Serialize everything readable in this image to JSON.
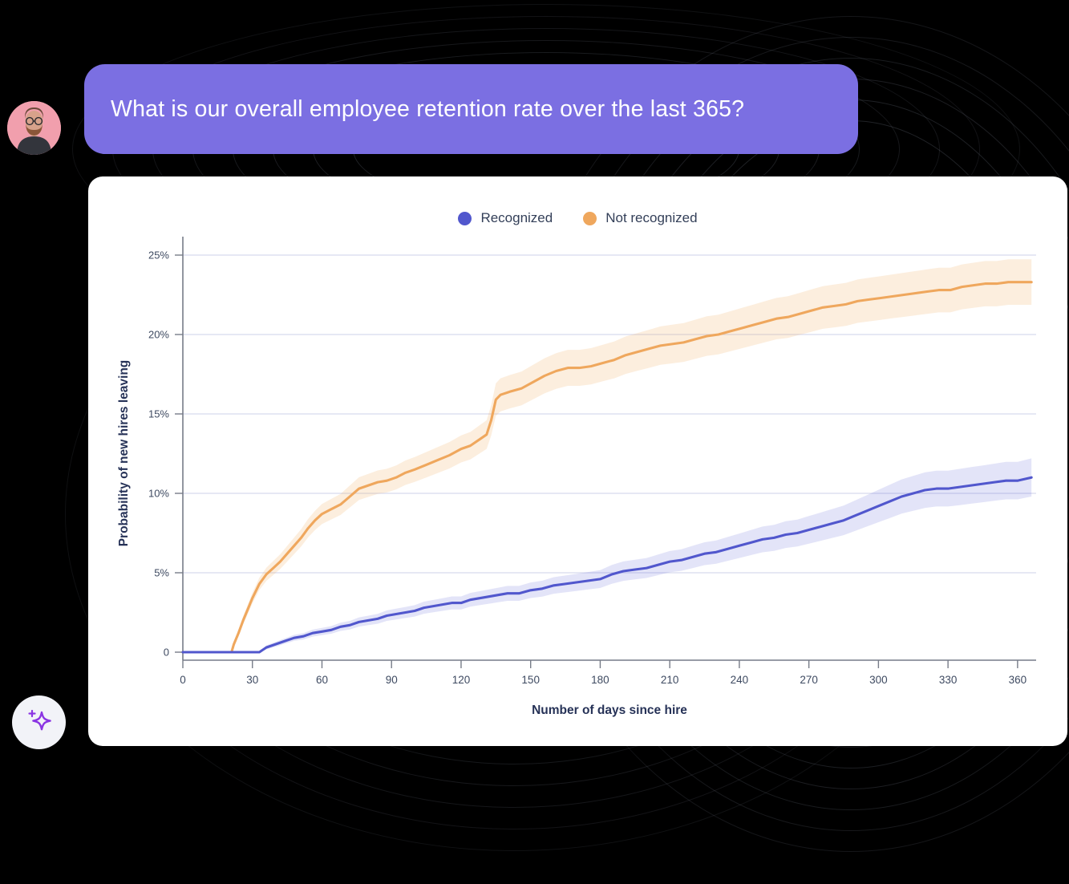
{
  "chat": {
    "message": "What is our overall employee retention rate over the last 365?"
  },
  "colors": {
    "bubble": "#7b6fe2",
    "card": "#ffffff",
    "background": "#000000",
    "gridline": "#d8daee",
    "axis": "#777c88",
    "tick_text": "#3e4a61",
    "axis_title": "#263257",
    "sparkle": "#8b35e3",
    "avatar_bg": "#f19fad"
  },
  "chart_data": {
    "type": "line",
    "title": "",
    "xlabel": "Number of days since hire",
    "ylabel": "Probability of new hires leaving",
    "xlim": [
      0,
      368
    ],
    "ylim": [
      0,
      26
    ],
    "grid": true,
    "legend_position": "top-center",
    "x_ticks": [
      0,
      30,
      60,
      90,
      120,
      150,
      180,
      210,
      240,
      270,
      300,
      330,
      360
    ],
    "x_tick_labels": [
      "0",
      "30",
      "60",
      "90",
      "120",
      "150",
      "180",
      "210",
      "240",
      "270",
      "300",
      "330",
      "360"
    ],
    "y_ticks": [
      0,
      5,
      10,
      15,
      20,
      25
    ],
    "y_tick_labels": [
      "0",
      "5%",
      "10%",
      "15%",
      "20%",
      "25%"
    ],
    "series": [
      {
        "name": "Not recognized",
        "color": "#efa75d",
        "band_color": "rgba(243,178,104,0.22)",
        "band_rule": {
          "min": 0.15,
          "factor": 0.055
        },
        "points": [
          [
            0,
            0
          ],
          [
            21,
            0
          ],
          [
            22,
            0.5
          ],
          [
            24,
            1.2
          ],
          [
            26,
            2.0
          ],
          [
            28,
            2.7
          ],
          [
            30,
            3.4
          ],
          [
            33,
            4.3
          ],
          [
            36,
            4.9
          ],
          [
            39,
            5.3
          ],
          [
            42,
            5.7
          ],
          [
            45,
            6.2
          ],
          [
            48,
            6.7
          ],
          [
            51,
            7.2
          ],
          [
            54,
            7.8
          ],
          [
            57,
            8.3
          ],
          [
            60,
            8.7
          ],
          [
            64,
            9.0
          ],
          [
            68,
            9.3
          ],
          [
            72,
            9.8
          ],
          [
            76,
            10.3
          ],
          [
            80,
            10.5
          ],
          [
            84,
            10.7
          ],
          [
            88,
            10.8
          ],
          [
            92,
            11.0
          ],
          [
            96,
            11.3
          ],
          [
            100,
            11.5
          ],
          [
            105,
            11.8
          ],
          [
            110,
            12.1
          ],
          [
            115,
            12.4
          ],
          [
            120,
            12.8
          ],
          [
            124,
            13.0
          ],
          [
            128,
            13.4
          ],
          [
            131,
            13.7
          ],
          [
            133,
            14.6
          ],
          [
            135,
            15.9
          ],
          [
            137,
            16.2
          ],
          [
            141,
            16.4
          ],
          [
            146,
            16.6
          ],
          [
            151,
            17.0
          ],
          [
            156,
            17.4
          ],
          [
            161,
            17.7
          ],
          [
            166,
            17.9
          ],
          [
            171,
            17.9
          ],
          [
            176,
            18.0
          ],
          [
            181,
            18.2
          ],
          [
            186,
            18.4
          ],
          [
            191,
            18.7
          ],
          [
            196,
            18.9
          ],
          [
            201,
            19.1
          ],
          [
            206,
            19.3
          ],
          [
            211,
            19.4
          ],
          [
            216,
            19.5
          ],
          [
            221,
            19.7
          ],
          [
            226,
            19.9
          ],
          [
            231,
            20.0
          ],
          [
            236,
            20.2
          ],
          [
            241,
            20.4
          ],
          [
            246,
            20.6
          ],
          [
            251,
            20.8
          ],
          [
            256,
            21.0
          ],
          [
            261,
            21.1
          ],
          [
            266,
            21.3
          ],
          [
            271,
            21.5
          ],
          [
            276,
            21.7
          ],
          [
            281,
            21.8
          ],
          [
            286,
            21.9
          ],
          [
            291,
            22.1
          ],
          [
            296,
            22.2
          ],
          [
            301,
            22.3
          ],
          [
            306,
            22.4
          ],
          [
            311,
            22.5
          ],
          [
            316,
            22.6
          ],
          [
            321,
            22.7
          ],
          [
            326,
            22.8
          ],
          [
            331,
            22.8
          ],
          [
            336,
            23.0
          ],
          [
            341,
            23.1
          ],
          [
            346,
            23.2
          ],
          [
            351,
            23.2
          ],
          [
            356,
            23.3
          ],
          [
            361,
            23.3
          ],
          [
            366,
            23.3
          ]
        ]
      },
      {
        "name": "Recognized",
        "color": "#5157cd",
        "band_color": "rgba(99,104,216,0.18)",
        "band_rule": {
          "min": 0.1,
          "factor": 0.1
        },
        "points": [
          [
            0,
            0
          ],
          [
            33,
            0
          ],
          [
            36,
            0.3
          ],
          [
            40,
            0.5
          ],
          [
            44,
            0.7
          ],
          [
            48,
            0.9
          ],
          [
            52,
            1.0
          ],
          [
            56,
            1.2
          ],
          [
            60,
            1.3
          ],
          [
            64,
            1.4
          ],
          [
            68,
            1.6
          ],
          [
            72,
            1.7
          ],
          [
            76,
            1.9
          ],
          [
            80,
            2.0
          ],
          [
            84,
            2.1
          ],
          [
            88,
            2.3
          ],
          [
            92,
            2.4
          ],
          [
            96,
            2.5
          ],
          [
            100,
            2.6
          ],
          [
            104,
            2.8
          ],
          [
            108,
            2.9
          ],
          [
            112,
            3.0
          ],
          [
            116,
            3.1
          ],
          [
            120,
            3.1
          ],
          [
            124,
            3.3
          ],
          [
            128,
            3.4
          ],
          [
            132,
            3.5
          ],
          [
            136,
            3.6
          ],
          [
            140,
            3.7
          ],
          [
            145,
            3.7
          ],
          [
            150,
            3.9
          ],
          [
            155,
            4.0
          ],
          [
            160,
            4.2
          ],
          [
            165,
            4.3
          ],
          [
            170,
            4.4
          ],
          [
            175,
            4.5
          ],
          [
            180,
            4.6
          ],
          [
            185,
            4.9
          ],
          [
            190,
            5.1
          ],
          [
            195,
            5.2
          ],
          [
            200,
            5.3
          ],
          [
            205,
            5.5
          ],
          [
            210,
            5.7
          ],
          [
            215,
            5.8
          ],
          [
            220,
            6.0
          ],
          [
            225,
            6.2
          ],
          [
            230,
            6.3
          ],
          [
            235,
            6.5
          ],
          [
            240,
            6.7
          ],
          [
            245,
            6.9
          ],
          [
            250,
            7.1
          ],
          [
            255,
            7.2
          ],
          [
            260,
            7.4
          ],
          [
            265,
            7.5
          ],
          [
            270,
            7.7
          ],
          [
            275,
            7.9
          ],
          [
            280,
            8.1
          ],
          [
            285,
            8.3
          ],
          [
            290,
            8.6
          ],
          [
            295,
            8.9
          ],
          [
            300,
            9.2
          ],
          [
            305,
            9.5
          ],
          [
            310,
            9.8
          ],
          [
            315,
            10.0
          ],
          [
            320,
            10.2
          ],
          [
            325,
            10.3
          ],
          [
            330,
            10.3
          ],
          [
            335,
            10.4
          ],
          [
            340,
            10.5
          ],
          [
            345,
            10.6
          ],
          [
            350,
            10.7
          ],
          [
            355,
            10.8
          ],
          [
            360,
            10.8
          ],
          [
            366,
            11.0
          ]
        ]
      }
    ],
    "legend_order": [
      "Recognized",
      "Not recognized"
    ]
  }
}
